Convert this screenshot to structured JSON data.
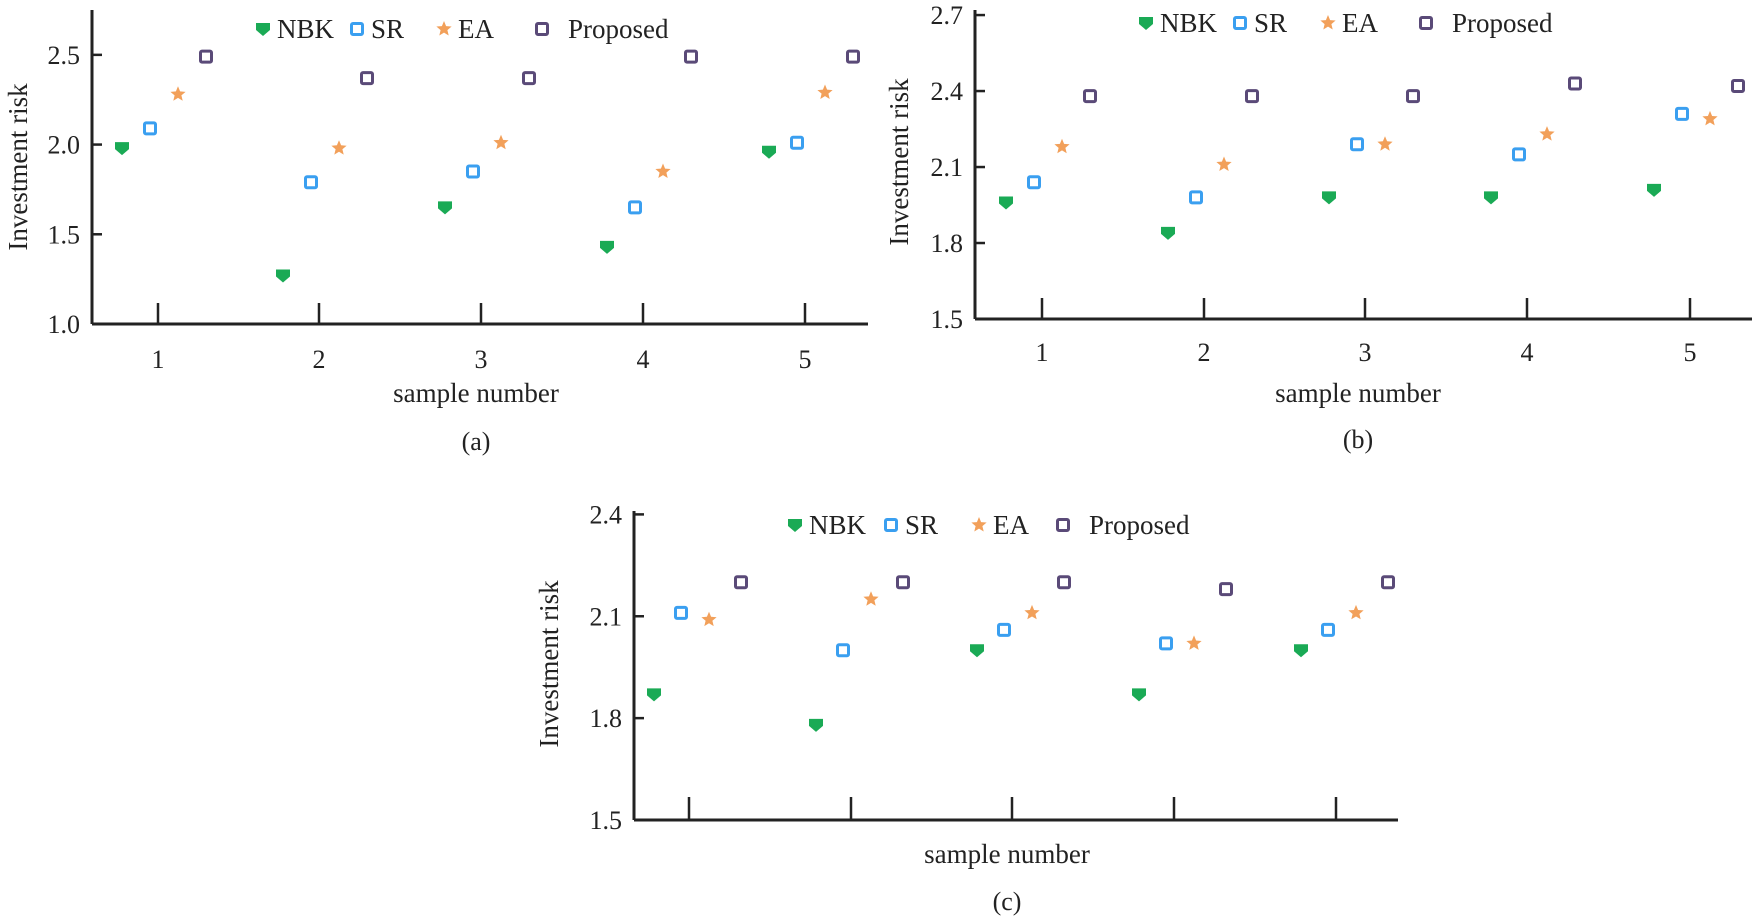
{
  "colors": {
    "NBK": "#1aaa55",
    "SR": "#3a9ff0",
    "EA": "#f2a05a",
    "Proposed": "#5a4a78",
    "axis": "#222222"
  },
  "chart_data": [
    {
      "type": "scatter",
      "panel_label": "(a)",
      "xlabel": "sample number",
      "ylabel": "Investment risk",
      "categories": [
        "1",
        "2",
        "3",
        "4",
        "5"
      ],
      "ylim": [
        1.0,
        2.75
      ],
      "yticks": [
        "1.0",
        "1.5",
        "2.0",
        "2.5"
      ],
      "legend": [
        "NBK",
        "SR",
        "EA",
        "Proposed"
      ],
      "series": [
        {
          "name": "NBK",
          "marker": "shield",
          "values": [
            1.98,
            1.27,
            1.65,
            1.43,
            1.96
          ]
        },
        {
          "name": "SR",
          "marker": "square-open",
          "values": [
            2.09,
            1.79,
            1.85,
            1.65,
            2.01
          ]
        },
        {
          "name": "EA",
          "marker": "star",
          "values": [
            2.28,
            1.98,
            2.01,
            1.85,
            2.29
          ]
        },
        {
          "name": "Proposed",
          "marker": "square-open",
          "values": [
            2.49,
            2.37,
            2.37,
            2.49,
            2.49
          ]
        }
      ]
    },
    {
      "type": "scatter",
      "panel_label": "(b)",
      "xlabel": "sample number",
      "ylabel": "Investment risk",
      "categories": [
        "1",
        "2",
        "3",
        "4",
        "5"
      ],
      "ylim": [
        1.5,
        2.72
      ],
      "yticks": [
        "1.5",
        "1.8",
        "2.1",
        "2.4",
        "2.7"
      ],
      "legend": [
        "NBK",
        "SR",
        "EA",
        "Proposed"
      ],
      "series": [
        {
          "name": "NBK",
          "marker": "shield",
          "values": [
            1.96,
            1.84,
            1.98,
            1.98,
            2.01
          ]
        },
        {
          "name": "SR",
          "marker": "square-open",
          "values": [
            2.04,
            1.98,
            2.19,
            2.15,
            2.31
          ]
        },
        {
          "name": "EA",
          "marker": "star",
          "values": [
            2.18,
            2.11,
            2.19,
            2.23,
            2.29
          ]
        },
        {
          "name": "Proposed",
          "marker": "square-open",
          "values": [
            2.38,
            2.38,
            2.38,
            2.43,
            2.42
          ]
        }
      ]
    },
    {
      "type": "scatter",
      "panel_label": "(c)",
      "xlabel": "sample number",
      "ylabel": "Investment risk",
      "categories": [
        "",
        "",
        "",
        "",
        ""
      ],
      "ylim": [
        1.5,
        2.41
      ],
      "yticks": [
        "1.5",
        "1.8",
        "2.1",
        "2.4"
      ],
      "legend": [
        "NBK",
        "SR",
        "EA",
        "Proposed"
      ],
      "series": [
        {
          "name": "NBK",
          "marker": "shield",
          "values": [
            1.87,
            1.78,
            2.0,
            1.87,
            2.0
          ]
        },
        {
          "name": "SR",
          "marker": "square-open",
          "values": [
            2.11,
            2.0,
            2.06,
            2.02,
            2.06
          ]
        },
        {
          "name": "EA",
          "marker": "star",
          "values": [
            2.09,
            2.15,
            2.11,
            2.02,
            2.11
          ]
        },
        {
          "name": "Proposed",
          "marker": "square-open",
          "values": [
            2.2,
            2.2,
            2.2,
            2.18,
            2.2
          ]
        }
      ]
    }
  ]
}
